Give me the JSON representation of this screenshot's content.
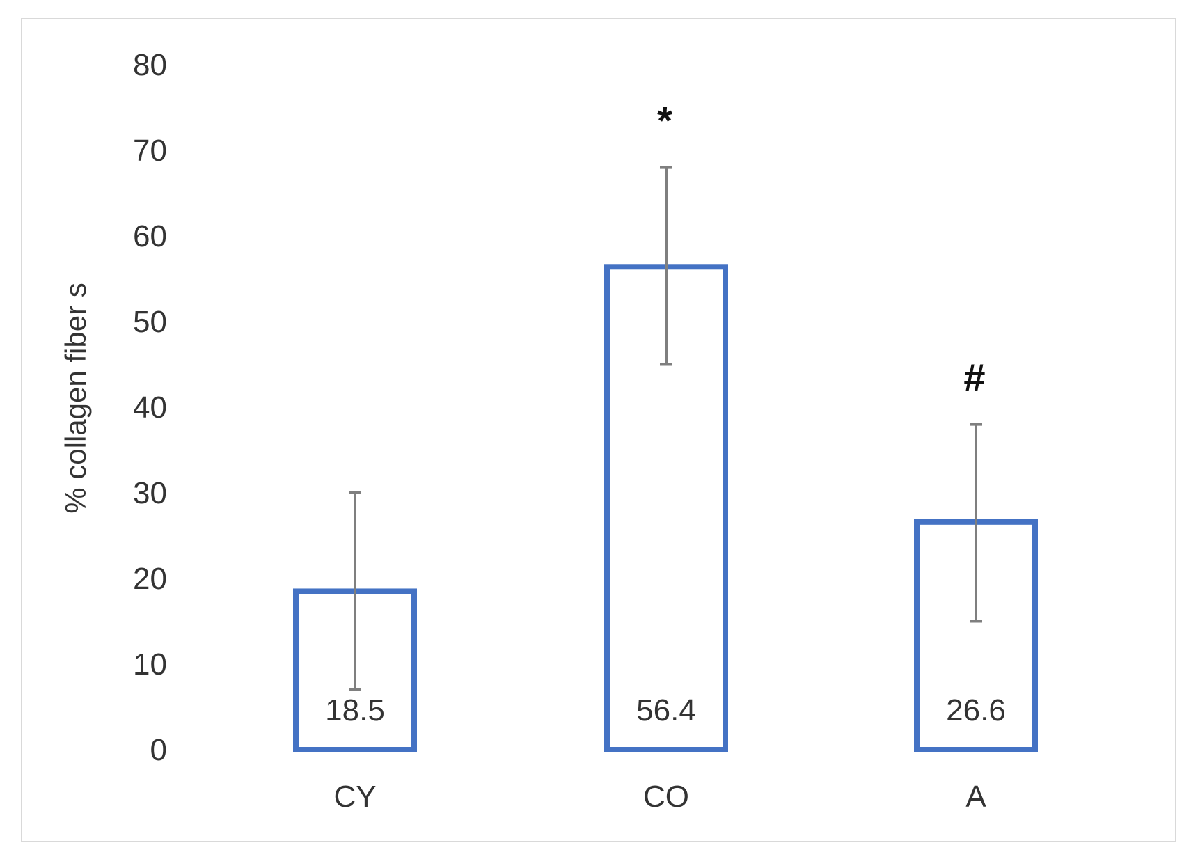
{
  "chart_data": {
    "type": "bar",
    "categories": [
      "CY",
      "CO",
      "A"
    ],
    "values": [
      18.5,
      56.4,
      26.6
    ],
    "data_labels": [
      "18.5",
      "56.4",
      "26.6"
    ],
    "error_bars": [
      {
        "low": 7,
        "high": 30
      },
      {
        "low": 45,
        "high": 68
      },
      {
        "low": 15,
        "high": 38
      }
    ],
    "annotations": [
      "",
      "*",
      "#"
    ],
    "title": "",
    "xlabel": "",
    "ylabel": "% collagen fiber s",
    "ylim": [
      0,
      80
    ],
    "yticks": [
      "0",
      "10",
      "20",
      "30",
      "40",
      "50",
      "60",
      "70",
      "80"
    ],
    "grid": false,
    "legend": "none",
    "bar_style": "outline",
    "colors": {
      "bar_stroke": "#4472c4",
      "bar_fill": "#ffffff",
      "error_bar": "#7f7f7f",
      "text": "#333333",
      "frame": "#d9d9d9"
    }
  }
}
